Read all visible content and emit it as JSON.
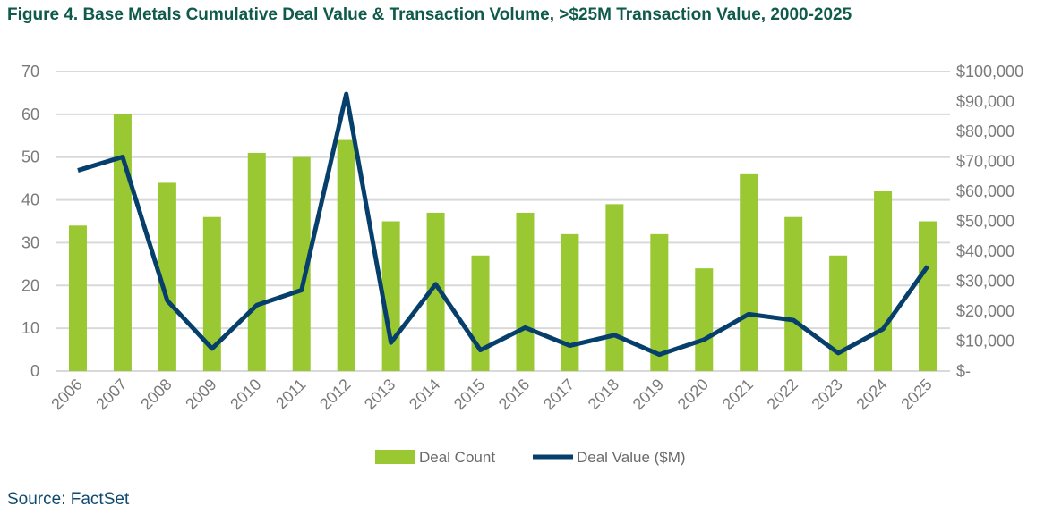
{
  "chart_data": {
    "type": "bar+line",
    "title": "Figure 4. Base Metals Cumulative Deal Value & Transaction Volume, >$25M Transaction Value, 2000-2025",
    "source": "Source: FactSet",
    "categories": [
      "2006",
      "2007",
      "2008",
      "2009",
      "2010",
      "2011",
      "2012",
      "2013",
      "2014",
      "2015",
      "2016",
      "2017",
      "2018",
      "2019",
      "2020",
      "2021",
      "2022",
      "2023",
      "2024",
      "2025"
    ],
    "series": [
      {
        "name": "Deal Count",
        "type": "bar",
        "axis": "left",
        "color": "#9ac833",
        "values": [
          34,
          60,
          44,
          36,
          51,
          50,
          54,
          35,
          37,
          27,
          37,
          32,
          39,
          32,
          24,
          46,
          36,
          27,
          42,
          35
        ]
      },
      {
        "name": "Deal Value ($M)",
        "type": "line",
        "axis": "right",
        "color": "#063f6b",
        "values": [
          67000,
          71500,
          23500,
          7500,
          22000,
          27000,
          92500,
          9500,
          29000,
          7000,
          14500,
          8500,
          12000,
          5500,
          10500,
          19000,
          17000,
          6000,
          14000,
          35000
        ]
      }
    ],
    "y_left": {
      "range": [
        0,
        70
      ],
      "ticks": [
        "0",
        "10",
        "20",
        "30",
        "40",
        "50",
        "60",
        "70"
      ]
    },
    "y_right": {
      "range": [
        0,
        100000
      ],
      "ticks": [
        "$-",
        "$10,000",
        "$20,000",
        "$30,000",
        "$40,000",
        "$50,000",
        "$60,000",
        "$70,000",
        "$80,000",
        "$90,000",
        "$100,000"
      ]
    },
    "grid": true,
    "legend": "bottom"
  }
}
